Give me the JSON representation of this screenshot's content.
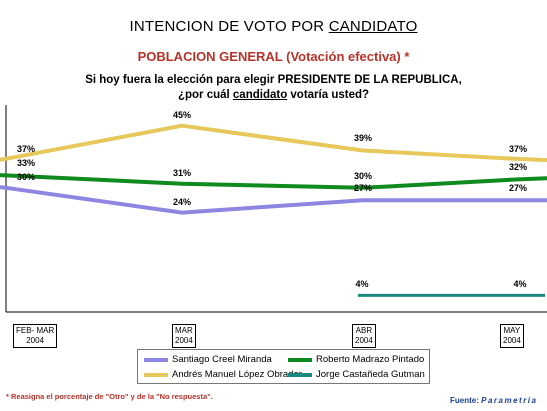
{
  "header": {
    "title_prefix": "INTENCION DE VOTO POR ",
    "title_underlined": "CANDIDATO",
    "subtitle_main": "POBLACION GENERAL ",
    "subtitle_paren": "(Votación efectiva)",
    "subtitle_mark": " *",
    "question_line1": "Si hoy fuera la elección para elegir PRESIDENTE DE LA REPUBLICA,",
    "question_line2_a": "¿por cuál ",
    "question_line2_u": "candidato",
    "question_line2_b": " votaría usted?"
  },
  "chart_data": {
    "type": "line",
    "categories": [
      {
        "line1": "FEB- MAR",
        "line2": "2004"
      },
      {
        "line1": "MAR",
        "line2": "2004"
      },
      {
        "line1": "ABR",
        "line2": "2004"
      },
      {
        "line1": "MAY",
        "line2": "2004"
      }
    ],
    "ylim": [
      0,
      50
    ],
    "series": [
      {
        "name": "Santiago Creel Miranda",
        "color": "#8e86e0",
        "values": [
          30,
          24,
          27,
          27
        ],
        "labels": [
          "30%",
          "24%",
          "27%",
          "27%"
        ]
      },
      {
        "name": "Roberto Madrazo Pintado",
        "color": "#0f8a1f",
        "values": [
          33,
          31,
          30,
          32
        ],
        "labels": [
          "33%",
          "31%",
          "30%",
          "32%"
        ]
      },
      {
        "name": "Andrés Manuel López Obrador",
        "color": "#e6c95a",
        "values": [
          37,
          45,
          39,
          37
        ],
        "labels": [
          "37%",
          "45%",
          "39%",
          "37%"
        ]
      },
      {
        "name": "Jorge Castañeda Gutman",
        "color": "#1a8a7e",
        "values": [
          null,
          null,
          4,
          4
        ],
        "labels": [
          null,
          null,
          "4%",
          "4%"
        ]
      }
    ]
  },
  "footer": {
    "footnote": "* Reasigna el porcentaje de \"Otro\" y de la \"No respuesta\".",
    "source_label": "Fuente: ",
    "source_brand": "Parametría"
  }
}
